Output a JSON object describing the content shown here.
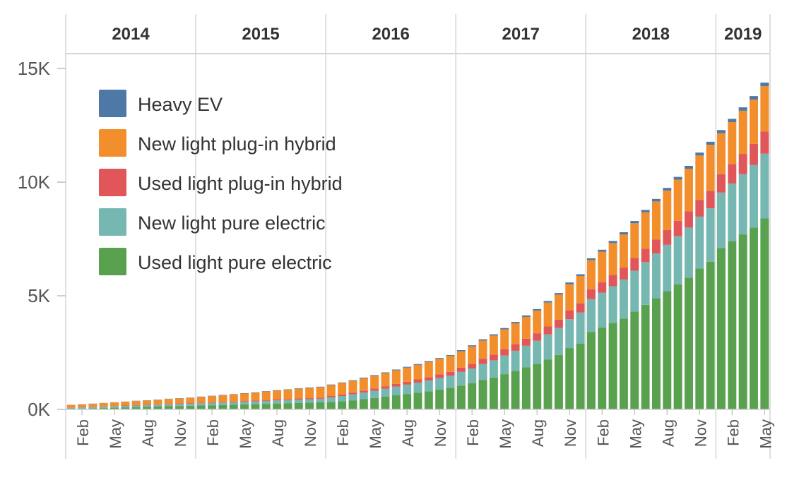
{
  "chart_data": {
    "type": "bar",
    "stacked": true,
    "title": "",
    "xlabel": "",
    "ylabel": "",
    "ylim": [
      0,
      15000
    ],
    "y_ticks": [
      {
        "value": 0,
        "label": "0K"
      },
      {
        "value": 5000,
        "label": "5K"
      },
      {
        "value": 10000,
        "label": "10K"
      },
      {
        "value": 15000,
        "label": "15K"
      }
    ],
    "years": [
      {
        "label": "2014",
        "months": 12
      },
      {
        "label": "2015",
        "months": 12
      },
      {
        "label": "2016",
        "months": 12
      },
      {
        "label": "2017",
        "months": 12
      },
      {
        "label": "2018",
        "months": 12
      },
      {
        "label": "2019",
        "months": 5
      }
    ],
    "month_tick_labels": [
      "Feb",
      "May",
      "Aug",
      "Nov"
    ],
    "x_ticks": [
      {
        "year": 0,
        "month": 2,
        "label": "Feb"
      },
      {
        "year": 0,
        "month": 5,
        "label": "May"
      },
      {
        "year": 0,
        "month": 8,
        "label": "Aug"
      },
      {
        "year": 0,
        "month": 11,
        "label": "Nov"
      },
      {
        "year": 1,
        "month": 2,
        "label": "Feb"
      },
      {
        "year": 1,
        "month": 5,
        "label": "May"
      },
      {
        "year": 1,
        "month": 8,
        "label": "Aug"
      },
      {
        "year": 1,
        "month": 11,
        "label": "Nov"
      },
      {
        "year": 2,
        "month": 2,
        "label": "Feb"
      },
      {
        "year": 2,
        "month": 5,
        "label": "May"
      },
      {
        "year": 2,
        "month": 8,
        "label": "Aug"
      },
      {
        "year": 2,
        "month": 11,
        "label": "Nov"
      },
      {
        "year": 3,
        "month": 2,
        "label": "Feb"
      },
      {
        "year": 3,
        "month": 5,
        "label": "May"
      },
      {
        "year": 3,
        "month": 8,
        "label": "Aug"
      },
      {
        "year": 3,
        "month": 11,
        "label": "Nov"
      },
      {
        "year": 4,
        "month": 2,
        "label": "Feb"
      },
      {
        "year": 4,
        "month": 5,
        "label": "May"
      },
      {
        "year": 4,
        "month": 8,
        "label": "Aug"
      },
      {
        "year": 4,
        "month": 11,
        "label": "Nov"
      },
      {
        "year": 5,
        "month": 2,
        "label": "Feb"
      },
      {
        "year": 5,
        "month": 5,
        "label": "May"
      }
    ],
    "legend": {
      "position": "top-left"
    },
    "series": [
      {
        "name": "Used light pure electric",
        "color": "#59a14f",
        "values": [
          30,
          40,
          50,
          60,
          75,
          90,
          100,
          110,
          125,
          140,
          150,
          160,
          170,
          180,
          190,
          200,
          215,
          230,
          245,
          260,
          275,
          290,
          300,
          310,
          330,
          360,
          400,
          450,
          500,
          560,
          620,
          680,
          740,
          800,
          880,
          950,
          1050,
          1150,
          1300,
          1400,
          1550,
          1700,
          1850,
          2000,
          2200,
          2400,
          2700,
          2900,
          3400,
          3600,
          3800,
          4000,
          4300,
          4600,
          4900,
          5200,
          5500,
          5800,
          6200,
          6500,
          7100,
          7400,
          7700,
          8000,
          8400
        ]
      },
      {
        "name": "New light pure electric",
        "color": "#76b7b2",
        "values": [
          40,
          45,
          50,
          55,
          60,
          65,
          70,
          75,
          80,
          85,
          90,
          95,
          100,
          105,
          110,
          115,
          120,
          125,
          130,
          135,
          140,
          145,
          150,
          160,
          200,
          230,
          260,
          290,
          320,
          350,
          380,
          410,
          440,
          470,
          500,
          530,
          600,
          650,
          700,
          760,
          820,
          880,
          950,
          1020,
          1100,
          1180,
          1270,
          1360,
          1450,
          1530,
          1620,
          1710,
          1800,
          1880,
          1960,
          2040,
          2120,
          2200,
          2280,
          2350,
          2440,
          2540,
          2650,
          2750,
          2850
        ]
      },
      {
        "name": "Used light plug-in hybrid",
        "color": "#e15759",
        "values": [
          10,
          10,
          10,
          15,
          15,
          15,
          20,
          20,
          20,
          25,
          25,
          25,
          30,
          30,
          30,
          35,
          35,
          35,
          40,
          40,
          40,
          45,
          45,
          50,
          60,
          70,
          80,
          90,
          100,
          110,
          120,
          130,
          140,
          150,
          160,
          170,
          190,
          210,
          230,
          250,
          270,
          290,
          310,
          330,
          350,
          370,
          390,
          410,
          440,
          470,
          500,
          530,
          560,
          590,
          620,
          650,
          680,
          710,
          740,
          770,
          810,
          850,
          890,
          930,
          970
        ]
      },
      {
        "name": "New light plug-in hybrid",
        "color": "#f28e2b",
        "values": [
          120,
          130,
          140,
          150,
          160,
          170,
          180,
          190,
          200,
          210,
          220,
          230,
          250,
          270,
          290,
          310,
          330,
          350,
          370,
          390,
          410,
          430,
          450,
          460,
          480,
          500,
          520,
          540,
          560,
          580,
          600,
          620,
          640,
          660,
          680,
          700,
          720,
          760,
          800,
          840,
          880,
          920,
          960,
          1000,
          1050,
          1100,
          1150,
          1200,
          1280,
          1340,
          1400,
          1460,
          1530,
          1600,
          1670,
          1740,
          1810,
          1880,
          1950,
          2020,
          1800,
          1850,
          1900,
          1950,
          2000
        ]
      },
      {
        "name": "Heavy EV",
        "color": "#4e79a7",
        "values": [
          5,
          5,
          5,
          5,
          5,
          5,
          10,
          10,
          10,
          10,
          10,
          10,
          15,
          15,
          15,
          15,
          15,
          15,
          20,
          20,
          20,
          20,
          20,
          20,
          25,
          25,
          25,
          30,
          30,
          30,
          35,
          35,
          35,
          40,
          40,
          40,
          50,
          50,
          55,
          55,
          60,
          60,
          65,
          65,
          70,
          70,
          75,
          75,
          80,
          85,
          90,
          95,
          100,
          105,
          110,
          115,
          120,
          125,
          130,
          135,
          140,
          145,
          150,
          155,
          160
        ]
      }
    ]
  }
}
